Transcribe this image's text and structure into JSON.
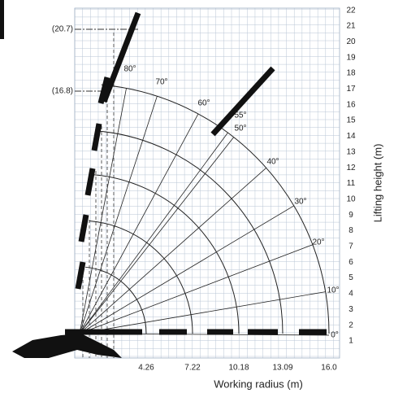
{
  "left_labels": [
    "(20.7)",
    "(16.8)"
  ],
  "right_axis": {
    "title": "Lifting height (m)",
    "labels": [
      "1",
      "2",
      "3",
      "4",
      "5",
      "6",
      "7",
      "8",
      "9",
      "10",
      "11",
      "12",
      "13",
      "14",
      "15",
      "16",
      "17",
      "18",
      "19",
      "20",
      "21",
      "22"
    ]
  },
  "bottom_axis": {
    "title": "Working radius (m)",
    "labels": [
      "4.26",
      "7.22",
      "10.18",
      "13.09",
      "16.0"
    ]
  },
  "angles": [
    "0°",
    "10°",
    "20°",
    "30°",
    "40°",
    "50°",
    "55°",
    "60°",
    "70°",
    "80°"
  ]
}
